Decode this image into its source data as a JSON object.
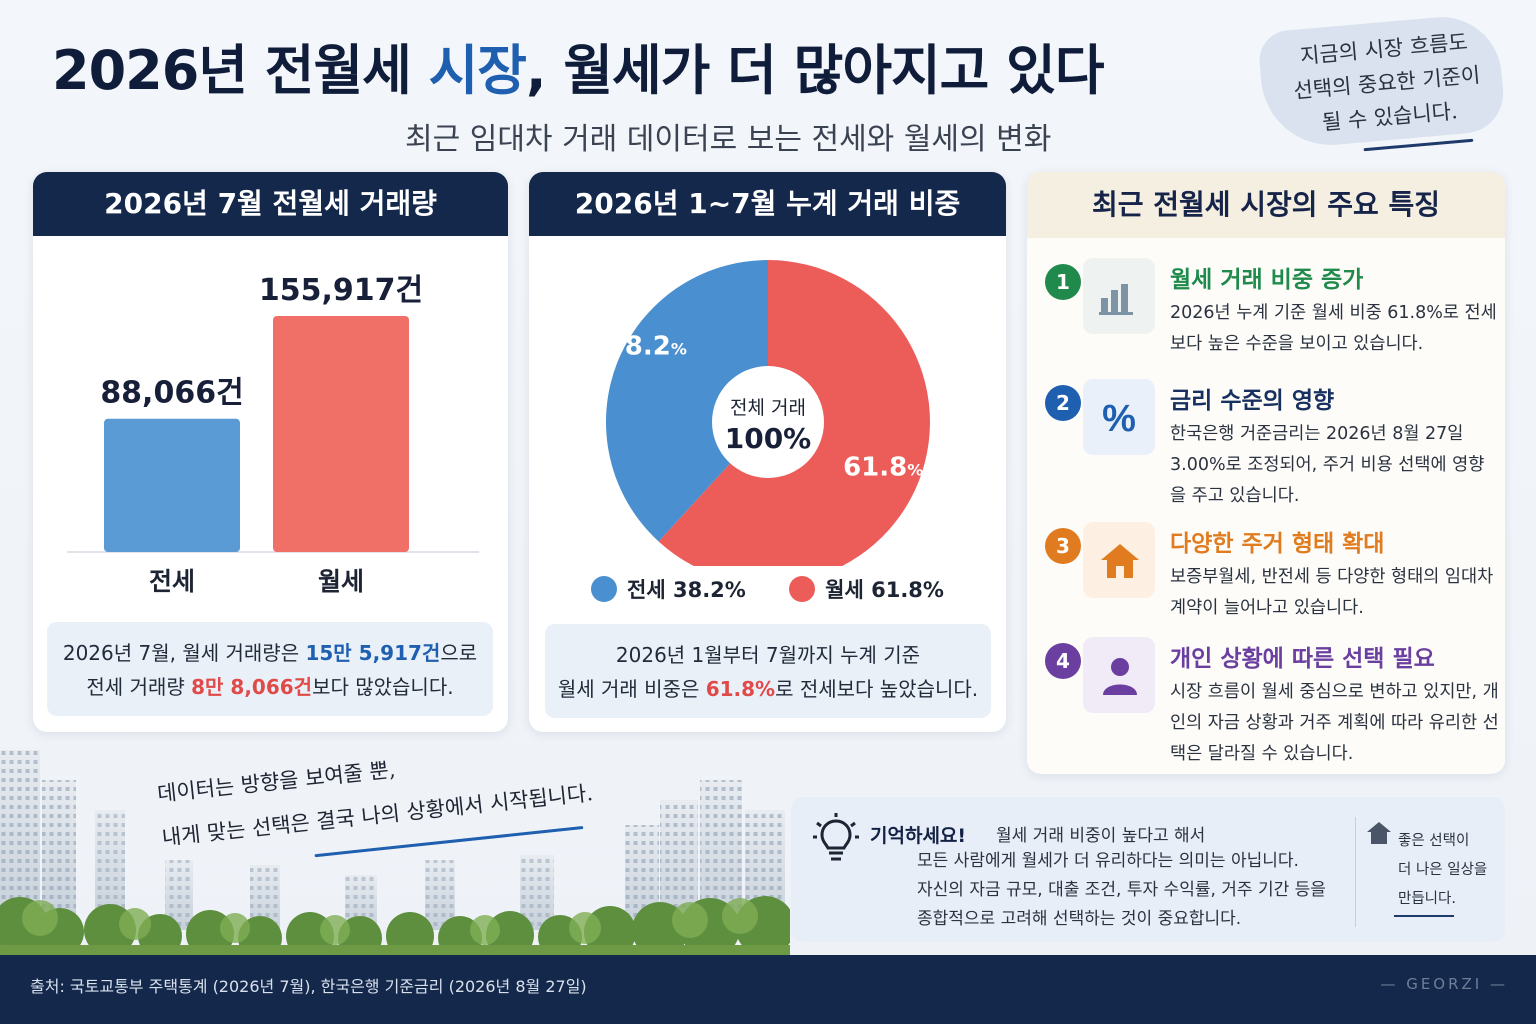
{
  "header": {
    "title_pre": "2026년 전월세 ",
    "title_hl": "시장",
    "title_post": ", 월세가 더 많아지고 있다",
    "subtitle": "최근 임대차 거래 데이터로 보는 전세와 월세의 변화"
  },
  "top_note": {
    "line1": "지금의 시장 흐름도",
    "line2": "선택의 중요한 기준이",
    "line3": "될 수 있습니다."
  },
  "bar_card": {
    "title": "2026년 7월 전월세 거래량",
    "summary_1": "2026년 7월, 월세 거래량은 ",
    "summary_hl1": "15만 5,917건",
    "summary_2": "으로",
    "summary_3": "전세 거래량 ",
    "summary_hl2": "8만 8,066건",
    "summary_4": "보다 많았습니다."
  },
  "pie_card": {
    "title": "2026년 1~7월 누계 거래 비중",
    "center_label": "전체 거래",
    "center_value": "100%",
    "legend_jeonse": "전세 38.2%",
    "legend_wolse": "월세 61.8%",
    "summary_1": "2026년 1월부터 7월까지 누계 기준",
    "summary_2": "월세 거래 비중은 ",
    "summary_hl": "61.8%",
    "summary_3": "로 전세보다 높았습니다."
  },
  "features": {
    "title": "최근 전월세 시장의 주요 특징",
    "items": [
      {
        "num": "1",
        "title": "월세 거래 비중 증가",
        "desc": "2026년 누계 기준 월세 비중 61.8%로 전세보다 높은 수준을 보이고 있습니다.",
        "color": "#1f8a4c",
        "icon": "bar-chart-icon"
      },
      {
        "num": "2",
        "title": "금리 수준의 영향",
        "desc": "한국은행 거준금리는 2026년 8월 27일 3.00%로 조정되어, 주거 비용 선택에 영향을 주고 있습니다.",
        "color": "#1f5fb0",
        "icon": "percent-icon"
      },
      {
        "num": "3",
        "title": "다양한 주거 형태 확대",
        "desc": "보증부월세, 반전세 등 다양한 형태의 임대차 계약이 늘어나고 있습니다.",
        "color": "#e07b1f",
        "icon": "house-icon"
      },
      {
        "num": "4",
        "title": "개인 상황에 따른 선택 필요",
        "desc": "시장 흐름이 월세 중심으로 변하고 있지만, 개인의 자금 상황과 거주 계획에 따라 유리한 선택은 달라질 수 있습니다.",
        "color": "#6a3fa0",
        "icon": "person-icon"
      }
    ]
  },
  "handwritten": {
    "line1": "데이터는 방향을 보여줄 뿐,",
    "line2": "내게 맞는 선택은 결국 나의 상황에서 시작됩니다."
  },
  "remember": {
    "title": "기억하세요!",
    "line1": "월세 거래 비중이 높다고 해서",
    "line2": "모든 사람에게 월세가 더 유리하다는 의미는 아닙니다.",
    "line3": "자신의 자금 규모, 대출 조건, 투자 수익률, 거주 기간 등을",
    "line4": "종합적으로 고려해 선택하는 것이 중요합니다.",
    "side1": "좋은 선택이",
    "side2": "더 나은 일상을",
    "side3": "만듭니다."
  },
  "footer": {
    "source": "출처: 국토교통부 주택통계 (2026년 7월), 한국은행 기준금리 (2026년 8월 27일)",
    "brand": "— GEORZI —"
  },
  "chart_data": [
    {
      "type": "bar",
      "title": "2026년 7월 전월세 거래량",
      "categories": [
        "전세",
        "월세"
      ],
      "values": [
        88066,
        155917
      ],
      "value_labels": [
        "88,066건",
        "155,917건"
      ],
      "colors": [
        "#5b9bd5",
        "#f07068"
      ]
    },
    {
      "type": "pie",
      "title": "2026년 1~7월 누계 거래 비중",
      "categories": [
        "전세",
        "월세"
      ],
      "values": [
        38.2,
        61.8
      ],
      "value_labels": [
        "38.2",
        "61.8"
      ],
      "unit": "%",
      "colors": [
        "#4a8fd0",
        "#ec5d5a"
      ]
    }
  ]
}
